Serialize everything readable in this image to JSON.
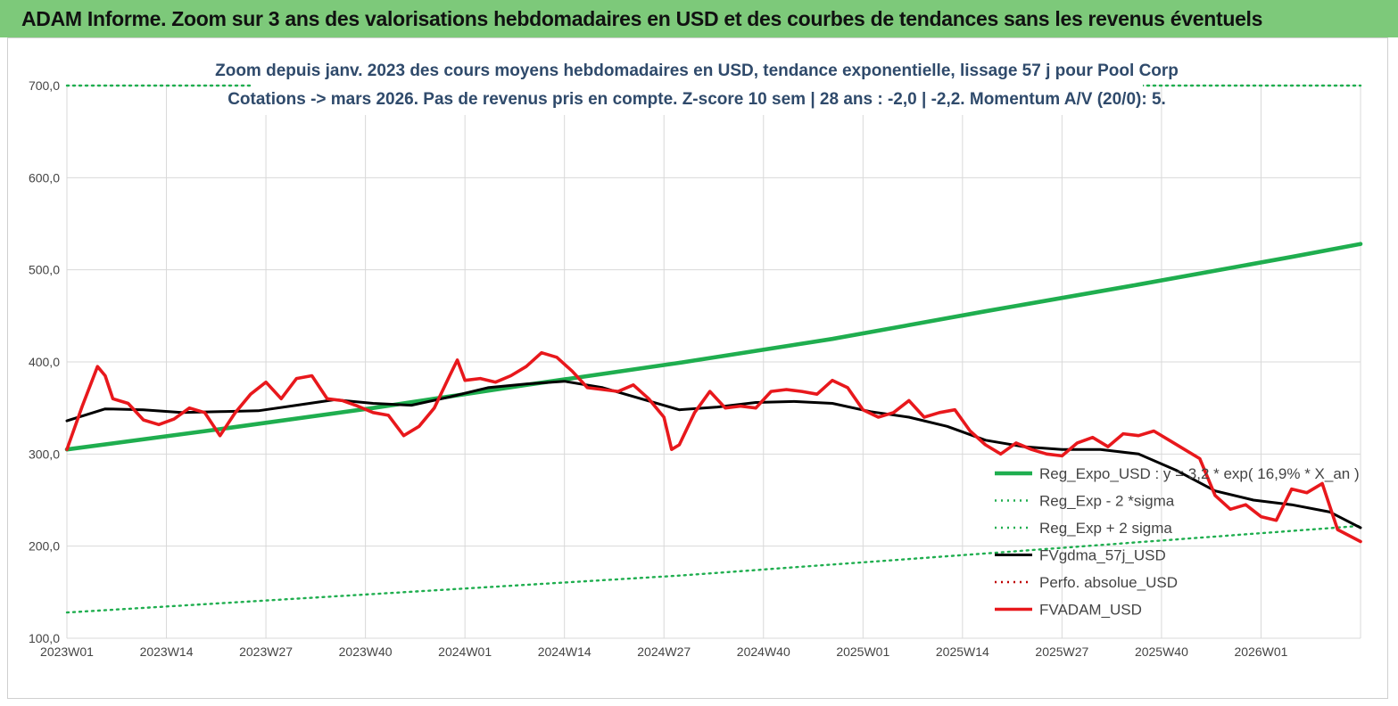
{
  "header": {
    "title": "ADAM Informe. Zoom sur 3 ans des valorisations hebdomadaires en USD et des courbes de tendances sans les revenus éventuels"
  },
  "chart_data": {
    "type": "line",
    "title_line1": "Zoom depuis janv. 2023 des cours moyens hebdomadaires en USD, tendance exponentielle, lissage 57 j pour Pool Corp",
    "title_line2": "Cotations -> mars 2026. Pas de revenus pris en  compte. Z-score 10 sem  | 28 ans : -2,0 | -2,2. Momentum A/V (20/0): 5.",
    "ylim": [
      100,
      700
    ],
    "y_ticks": [
      "100,0",
      "200,0",
      "300,0",
      "400,0",
      "500,0",
      "600,0",
      "700,0"
    ],
    "y_tick_values": [
      100,
      200,
      300,
      400,
      500,
      600,
      700
    ],
    "x_count": 170,
    "x_ticks": [
      "2023W01",
      "2023W14",
      "2023W27",
      "2023W40",
      "2024W01",
      "2024W14",
      "2024W27",
      "2024W40",
      "2025W01",
      "2025W14",
      "2025W27",
      "2025W40",
      "2026W01"
    ],
    "x_tick_index": [
      0,
      13,
      26,
      39,
      52,
      65,
      78,
      91,
      104,
      117,
      130,
      143,
      156
    ],
    "legend_position": "bottom-right",
    "series": [
      {
        "name": "Reg_Expo_USD : y = 3,2 * exp( 16,9% *  X_an )",
        "style": "solid-thick",
        "color": "#1fae4f",
        "x": [
          0,
          20,
          40,
          60,
          80,
          100,
          120,
          140,
          160,
          169
        ],
        "values": [
          305,
          327,
          350,
          375,
          399,
          425,
          455,
          484,
          514,
          528
        ]
      },
      {
        "name": "Reg_Exp - 2 *sigma",
        "style": "dotted",
        "color": "#1fae4f",
        "x": [
          0,
          40,
          80,
          120,
          169
        ],
        "values": [
          128,
          148,
          168,
          192,
          222
        ]
      },
      {
        "name": "Reg_Exp + 2 sigma",
        "style": "dotted",
        "color": "#1fae4f",
        "x": [
          0,
          169
        ],
        "values": [
          700,
          700
        ]
      },
      {
        "name": "FVgdma_57j_USD",
        "style": "solid",
        "color": "#000000",
        "x": [
          0,
          5,
          10,
          15,
          20,
          25,
          30,
          35,
          40,
          45,
          50,
          55,
          60,
          65,
          70,
          75,
          80,
          85,
          90,
          95,
          100,
          105,
          110,
          115,
          120,
          125,
          130,
          135,
          140,
          145,
          150,
          155,
          160,
          165,
          169
        ],
        "values": [
          336,
          349,
          348,
          345,
          346,
          347,
          353,
          359,
          355,
          353,
          362,
          372,
          376,
          379,
          372,
          360,
          348,
          351,
          356,
          357,
          355,
          346,
          340,
          330,
          315,
          308,
          305,
          305,
          300,
          282,
          260,
          250,
          245,
          237,
          220
        ]
      },
      {
        "name": "Perfo. absolue_USD",
        "style": "dotted",
        "color": "#c00000",
        "x": [],
        "values": []
      },
      {
        "name": "FVADAM_USD",
        "style": "solid-thick",
        "color": "#e8181c",
        "x": [
          0,
          2,
          4,
          5,
          6,
          8,
          10,
          12,
          14,
          16,
          18,
          20,
          22,
          24,
          26,
          28,
          30,
          32,
          34,
          36,
          38,
          40,
          42,
          44,
          46,
          48,
          50,
          51,
          52,
          54,
          56,
          58,
          60,
          62,
          64,
          66,
          68,
          70,
          72,
          74,
          76,
          78,
          79,
          80,
          82,
          84,
          86,
          88,
          90,
          92,
          94,
          96,
          98,
          100,
          102,
          104,
          106,
          108,
          110,
          112,
          114,
          116,
          118,
          120,
          122,
          124,
          126,
          128,
          130,
          132,
          134,
          136,
          138,
          140,
          142,
          144,
          146,
          148,
          150,
          152,
          154,
          156,
          158,
          160,
          162,
          164,
          166,
          169
        ],
        "values": [
          305,
          352,
          395,
          385,
          360,
          355,
          337,
          332,
          338,
          350,
          345,
          320,
          345,
          365,
          378,
          360,
          382,
          385,
          360,
          358,
          352,
          345,
          342,
          320,
          330,
          350,
          385,
          402,
          380,
          382,
          378,
          385,
          395,
          410,
          405,
          390,
          372,
          370,
          368,
          375,
          360,
          340,
          305,
          310,
          345,
          368,
          350,
          352,
          350,
          368,
          370,
          368,
          365,
          380,
          372,
          348,
          340,
          345,
          358,
          340,
          345,
          348,
          325,
          310,
          300,
          312,
          305,
          300,
          298,
          312,
          318,
          308,
          322,
          320,
          325,
          315,
          305,
          295,
          255,
          240,
          245,
          232,
          228,
          262,
          258,
          268,
          218,
          205
        ]
      }
    ]
  }
}
